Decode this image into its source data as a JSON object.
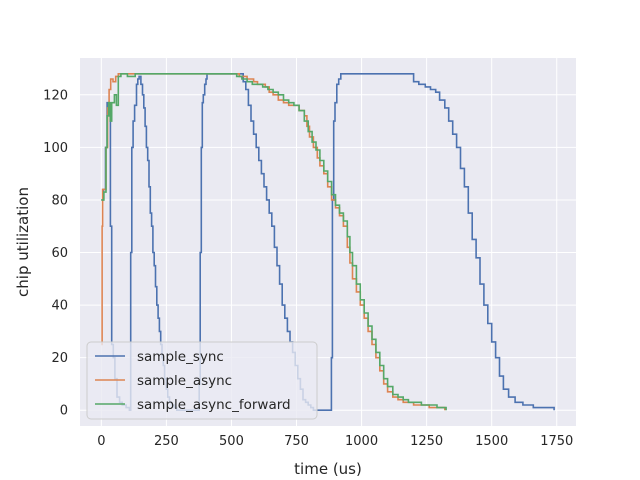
{
  "chart_data": {
    "type": "line",
    "xlabel": "time (us)",
    "ylabel": "chip utilization",
    "xlim": [
      -82,
      1824
    ],
    "ylim": [
      -6,
      134
    ],
    "xticks": [
      0,
      250,
      500,
      750,
      1000,
      1250,
      1500,
      1750
    ],
    "yticks": [
      0,
      20,
      40,
      60,
      80,
      100,
      120
    ],
    "grid": true,
    "legend_position": "lower-left",
    "colors": {
      "background": "#eaeaf2",
      "grid": "#ffffff",
      "sample_sync": "#4c72b0",
      "sample_async": "#dd8452",
      "sample_async_forward": "#55a868"
    },
    "series": [
      {
        "name": "sample_sync",
        "color": "#4c72b0",
        "points": [
          [
            0,
            80
          ],
          [
            8,
            84
          ],
          [
            16,
            100
          ],
          [
            22,
            117
          ],
          [
            28,
            112
          ],
          [
            35,
            70
          ],
          [
            40,
            25
          ],
          [
            46,
            20
          ],
          [
            52,
            12
          ],
          [
            60,
            5
          ],
          [
            70,
            3
          ],
          [
            80,
            2
          ],
          [
            95,
            1
          ],
          [
            108,
            0
          ],
          [
            113,
            60
          ],
          [
            117,
            100
          ],
          [
            122,
            110
          ],
          [
            128,
            116
          ],
          [
            135,
            124
          ],
          [
            140,
            126
          ],
          [
            145,
            127
          ],
          [
            152,
            124
          ],
          [
            158,
            120
          ],
          [
            163,
            115
          ],
          [
            168,
            108
          ],
          [
            173,
            100
          ],
          [
            178,
            95
          ],
          [
            183,
            85
          ],
          [
            188,
            75
          ],
          [
            193,
            70
          ],
          [
            198,
            60
          ],
          [
            203,
            55
          ],
          [
            208,
            47
          ],
          [
            213,
            40
          ],
          [
            218,
            35
          ],
          [
            223,
            30
          ],
          [
            228,
            25
          ],
          [
            233,
            20
          ],
          [
            238,
            17
          ],
          [
            243,
            12
          ],
          [
            250,
            8
          ],
          [
            255,
            5
          ],
          [
            262,
            3
          ],
          [
            270,
            2
          ],
          [
            280,
            1
          ],
          [
            290,
            0
          ],
          [
            370,
            0
          ],
          [
            376,
            10
          ],
          [
            380,
            60
          ],
          [
            384,
            100
          ],
          [
            388,
            117
          ],
          [
            392,
            120
          ],
          [
            397,
            124
          ],
          [
            402,
            126
          ],
          [
            406,
            128
          ],
          [
            450,
            128
          ],
          [
            480,
            128
          ],
          [
            500,
            128
          ],
          [
            520,
            128
          ],
          [
            545,
            125
          ],
          [
            555,
            122
          ],
          [
            565,
            116
          ],
          [
            575,
            110
          ],
          [
            585,
            105
          ],
          [
            595,
            100
          ],
          [
            605,
            95
          ],
          [
            615,
            90
          ],
          [
            625,
            85
          ],
          [
            635,
            80
          ],
          [
            645,
            75
          ],
          [
            655,
            70
          ],
          [
            665,
            62
          ],
          [
            675,
            55
          ],
          [
            685,
            48
          ],
          [
            695,
            40
          ],
          [
            705,
            35
          ],
          [
            715,
            30
          ],
          [
            725,
            26
          ],
          [
            735,
            22
          ],
          [
            745,
            17
          ],
          [
            755,
            12
          ],
          [
            765,
            8
          ],
          [
            775,
            4
          ],
          [
            785,
            3
          ],
          [
            795,
            2
          ],
          [
            805,
            1
          ],
          [
            815,
            0
          ],
          [
            850,
            0
          ],
          [
            880,
            0
          ],
          [
            884,
            20
          ],
          [
            888,
            80
          ],
          [
            893,
            110
          ],
          [
            898,
            117
          ],
          [
            905,
            124
          ],
          [
            912,
            126
          ],
          [
            920,
            128
          ],
          [
            1000,
            128
          ],
          [
            1100,
            128
          ],
          [
            1195,
            128
          ],
          [
            1200,
            125
          ],
          [
            1220,
            124
          ],
          [
            1245,
            123
          ],
          [
            1265,
            122
          ],
          [
            1285,
            121
          ],
          [
            1300,
            118
          ],
          [
            1320,
            115
          ],
          [
            1335,
            110
          ],
          [
            1350,
            105
          ],
          [
            1365,
            100
          ],
          [
            1380,
            92
          ],
          [
            1395,
            85
          ],
          [
            1410,
            75
          ],
          [
            1425,
            65
          ],
          [
            1440,
            58
          ],
          [
            1455,
            48
          ],
          [
            1470,
            40
          ],
          [
            1485,
            33
          ],
          [
            1500,
            26
          ],
          [
            1515,
            20
          ],
          [
            1530,
            13
          ],
          [
            1545,
            8
          ],
          [
            1565,
            5
          ],
          [
            1590,
            3
          ],
          [
            1620,
            2
          ],
          [
            1660,
            1
          ],
          [
            1700,
            1
          ],
          [
            1740,
            0
          ]
        ]
      },
      {
        "name": "sample_async",
        "color": "#dd8452",
        "points": [
          [
            0,
            25
          ],
          [
            3,
            70
          ],
          [
            5,
            84
          ],
          [
            14,
            84
          ],
          [
            18,
            100
          ],
          [
            24,
            115
          ],
          [
            30,
            122
          ],
          [
            36,
            126
          ],
          [
            45,
            125
          ],
          [
            55,
            127
          ],
          [
            65,
            128
          ],
          [
            100,
            128
          ],
          [
            200,
            128
          ],
          [
            300,
            128
          ],
          [
            400,
            128
          ],
          [
            500,
            128
          ],
          [
            530,
            127
          ],
          [
            560,
            126
          ],
          [
            585,
            125
          ],
          [
            600,
            124
          ],
          [
            615,
            124
          ],
          [
            630,
            123
          ],
          [
            645,
            121
          ],
          [
            660,
            120
          ],
          [
            680,
            118
          ],
          [
            700,
            117
          ],
          [
            720,
            116
          ],
          [
            740,
            116
          ],
          [
            760,
            114
          ],
          [
            780,
            112
          ],
          [
            790,
            108
          ],
          [
            800,
            104
          ],
          [
            815,
            100
          ],
          [
            830,
            96
          ],
          [
            840,
            93
          ],
          [
            855,
            90
          ],
          [
            870,
            85
          ],
          [
            885,
            80
          ],
          [
            900,
            77
          ],
          [
            915,
            74
          ],
          [
            930,
            70
          ],
          [
            945,
            62
          ],
          [
            955,
            56
          ],
          [
            965,
            50
          ],
          [
            980,
            45
          ],
          [
            995,
            40
          ],
          [
            1010,
            35
          ],
          [
            1025,
            30
          ],
          [
            1040,
            25
          ],
          [
            1055,
            20
          ],
          [
            1070,
            15
          ],
          [
            1085,
            10
          ],
          [
            1100,
            7
          ],
          [
            1120,
            5
          ],
          [
            1140,
            4
          ],
          [
            1160,
            3
          ],
          [
            1180,
            3
          ],
          [
            1200,
            2
          ],
          [
            1230,
            2
          ],
          [
            1260,
            1
          ],
          [
            1290,
            1
          ],
          [
            1310,
            1
          ],
          [
            1320,
            0
          ]
        ]
      },
      {
        "name": "sample_async_forward",
        "color": "#55a868",
        "points": [
          [
            0,
            80
          ],
          [
            4,
            80
          ],
          [
            10,
            83
          ],
          [
            18,
            100
          ],
          [
            22,
            112
          ],
          [
            28,
            117
          ],
          [
            34,
            110
          ],
          [
            40,
            117
          ],
          [
            50,
            120
          ],
          [
            58,
            116
          ],
          [
            65,
            127
          ],
          [
            75,
            128
          ],
          [
            100,
            127
          ],
          [
            130,
            128
          ],
          [
            200,
            128
          ],
          [
            300,
            128
          ],
          [
            400,
            128
          ],
          [
            500,
            128
          ],
          [
            520,
            127
          ],
          [
            540,
            126
          ],
          [
            560,
            125
          ],
          [
            580,
            124
          ],
          [
            600,
            124
          ],
          [
            620,
            123
          ],
          [
            640,
            122
          ],
          [
            660,
            121
          ],
          [
            680,
            120
          ],
          [
            700,
            118
          ],
          [
            720,
            117
          ],
          [
            740,
            116
          ],
          [
            760,
            114
          ],
          [
            780,
            110
          ],
          [
            795,
            106
          ],
          [
            810,
            102
          ],
          [
            825,
            99
          ],
          [
            840,
            95
          ],
          [
            855,
            91
          ],
          [
            870,
            87
          ],
          [
            885,
            82
          ],
          [
            900,
            78
          ],
          [
            915,
            75
          ],
          [
            930,
            72
          ],
          [
            945,
            66
          ],
          [
            955,
            60
          ],
          [
            965,
            55
          ],
          [
            980,
            48
          ],
          [
            995,
            42
          ],
          [
            1010,
            37
          ],
          [
            1025,
            32
          ],
          [
            1040,
            27
          ],
          [
            1055,
            22
          ],
          [
            1070,
            17
          ],
          [
            1085,
            12
          ],
          [
            1100,
            9
          ],
          [
            1120,
            6
          ],
          [
            1140,
            5
          ],
          [
            1160,
            4
          ],
          [
            1180,
            3
          ],
          [
            1200,
            3
          ],
          [
            1230,
            2
          ],
          [
            1260,
            2
          ],
          [
            1290,
            1
          ],
          [
            1310,
            1
          ],
          [
            1325,
            0
          ]
        ]
      }
    ]
  }
}
